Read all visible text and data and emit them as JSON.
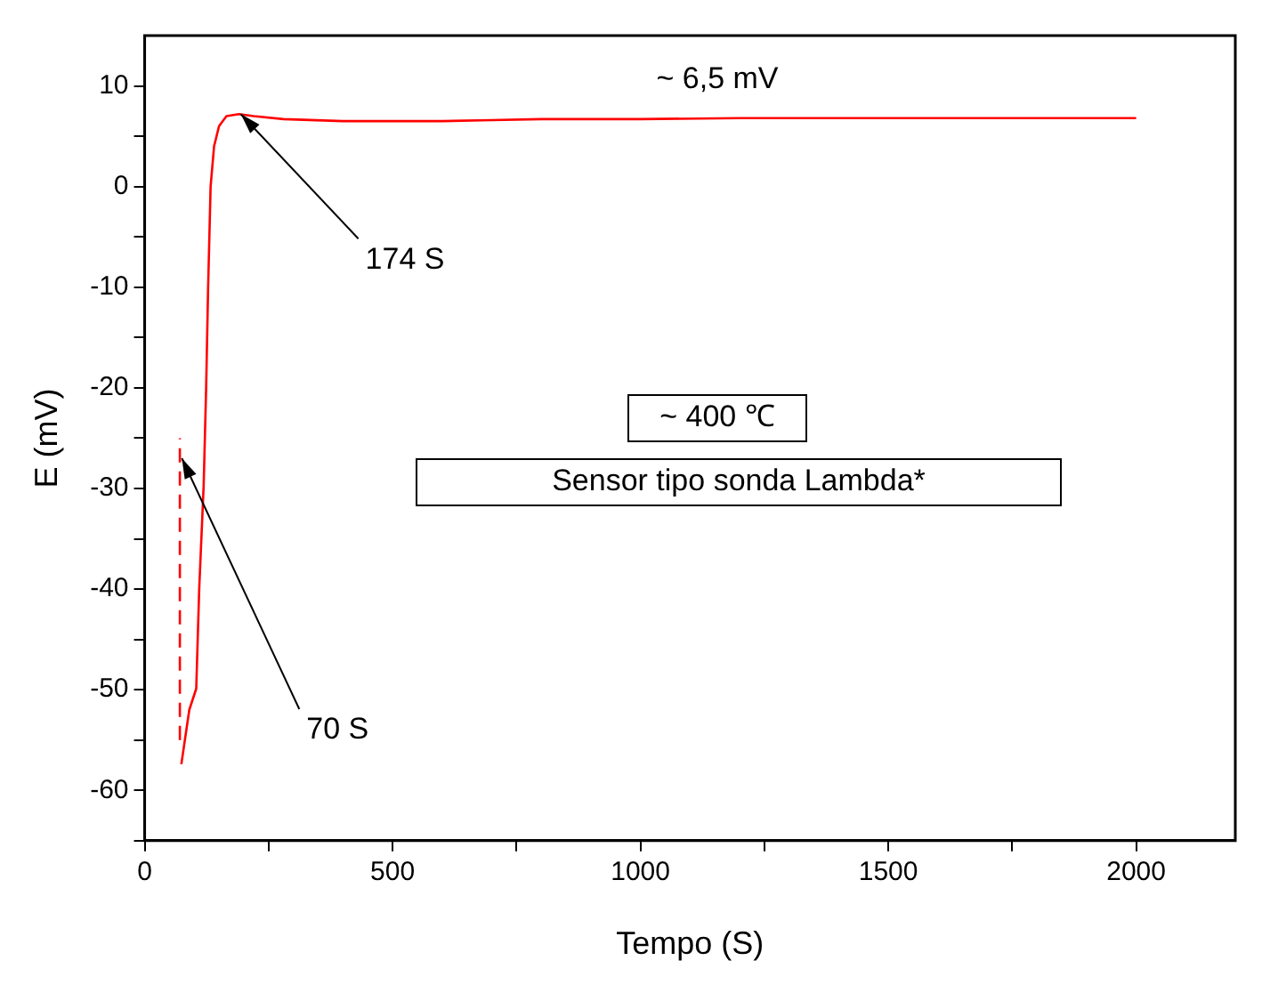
{
  "chart_data": {
    "type": "line",
    "xlabel": "Tempo (S)",
    "ylabel": "E (mV)",
    "xlim": [
      0,
      2200
    ],
    "ylim": [
      -65,
      15
    ],
    "xticks": [
      0,
      {
        "value": 250,
        "label": null
      },
      500,
      {
        "value": 750,
        "label": null
      },
      1000,
      {
        "value": 1250,
        "label": null
      },
      1500,
      {
        "value": 1750,
        "label": null
      },
      2000
    ],
    "yticks": [
      {
        "value": -65,
        "label": null
      },
      -60,
      {
        "value": -55,
        "label": null
      },
      -50,
      {
        "value": -45,
        "label": null
      },
      -40,
      {
        "value": -35,
        "label": null
      },
      -30,
      {
        "value": -25,
        "label": null
      },
      -20,
      {
        "value": -15,
        "label": null
      },
      -10,
      {
        "value": -5,
        "label": null
      },
      0,
      {
        "value": 5,
        "label": null
      },
      10
    ],
    "grid": false,
    "legend": false,
    "series": [
      {
        "color": "#ff0000",
        "line_style": "dashed",
        "x": [
          71,
          71
        ],
        "values": [
          -55,
          -25
        ]
      },
      {
        "color": "#ff0000",
        "line_style": "solid",
        "x": [
          74,
          90,
          104,
          110,
          119,
          124,
          128,
          133,
          140,
          150,
          165,
          190,
          220,
          280,
          400,
          600,
          700,
          800,
          1000,
          1200,
          1500,
          1750,
          2000
        ],
        "values": [
          -57.4,
          -52,
          -49.9,
          -40,
          -29.7,
          -20,
          -10,
          0,
          4,
          6,
          7,
          7.2,
          7,
          6.7,
          6.5,
          6.5,
          6.6,
          6.7,
          6.7,
          6.8,
          6.8,
          6.8,
          6.8
        ]
      }
    ],
    "annotations": [
      "~ 6,5 mV",
      "~ 400 ℃",
      "Sensor tipo sonda Lambda*",
      {
        "text": "174 S",
        "x": 194,
        "y": 7.2
      },
      {
        "text": "70 S",
        "x": 75,
        "y": -27
      }
    ]
  }
}
